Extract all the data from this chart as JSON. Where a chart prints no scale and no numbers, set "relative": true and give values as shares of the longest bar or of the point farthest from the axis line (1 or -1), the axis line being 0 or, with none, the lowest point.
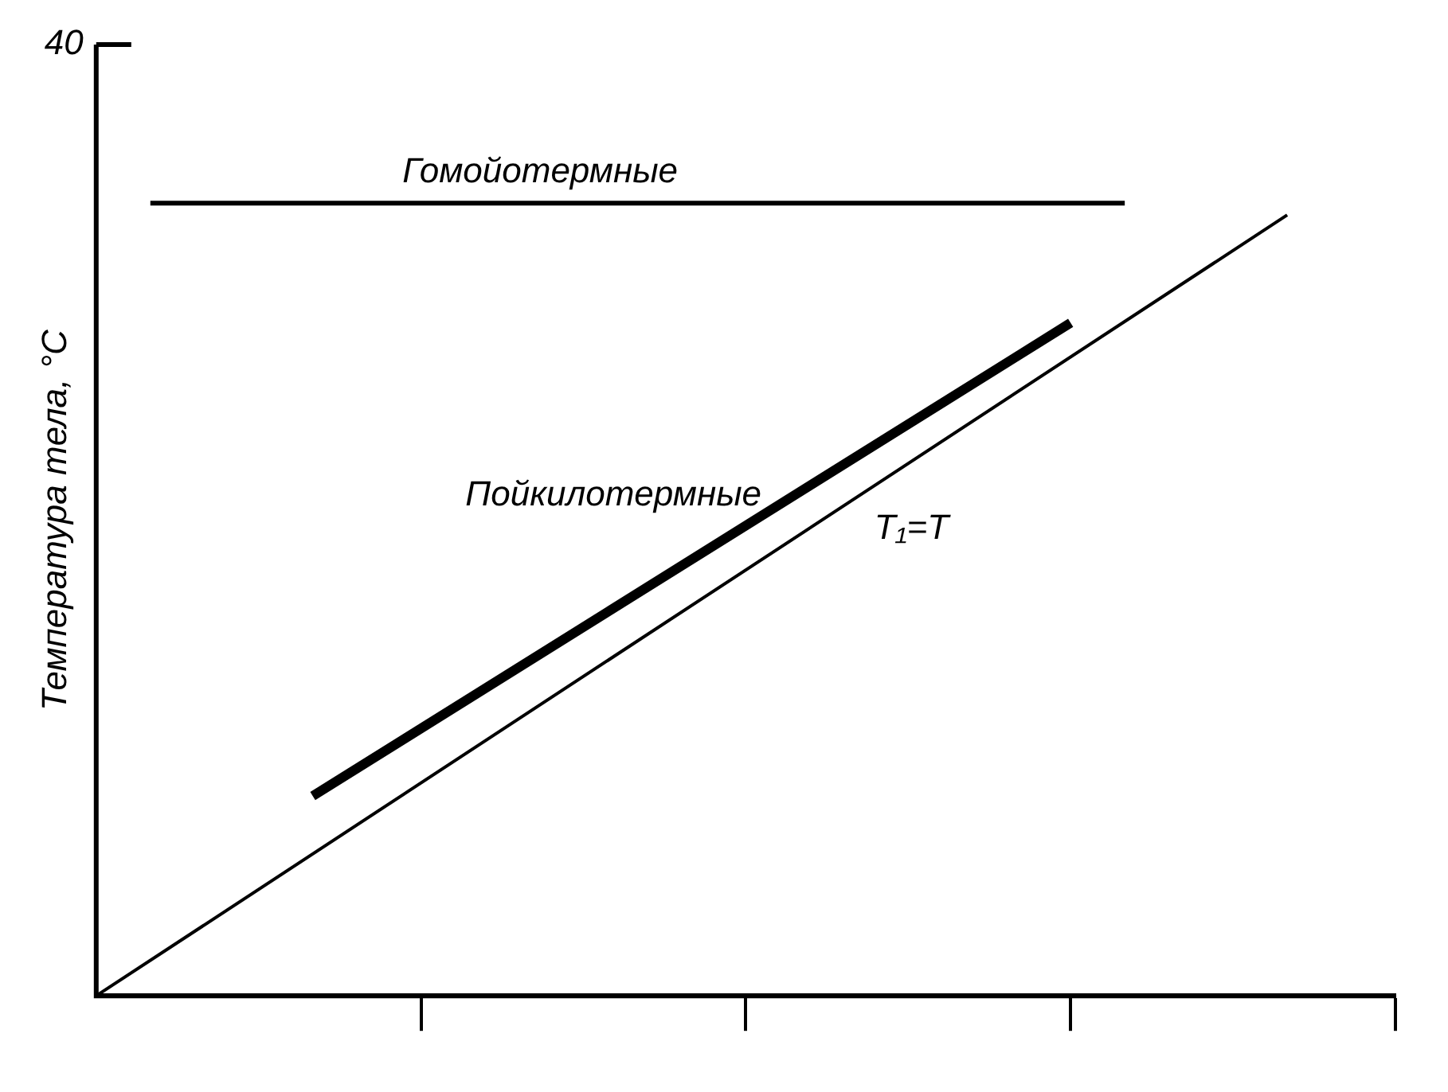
{
  "chart_data": {
    "type": "line",
    "relative": true,
    "ylabel": "Температура тела, °C",
    "annotations": [
      "40"
    ],
    "categories": [
      null,
      null,
      null,
      null,
      null,
      null,
      null,
      null,
      null,
      null,
      null,
      null,
      null,
      null,
      null,
      null,
      null,
      null,
      null,
      null,
      null,
      null,
      null,
      null,
      null
    ],
    "marker": "none",
    "line_style": "solid",
    "legend": false,
    "grid": false,
    "series": [
      {
        "name": "Гомойотермные",
        "color": "#000000",
        "values": [
          null,
          1,
          null,
          null,
          null,
          null,
          null,
          null,
          null,
          null,
          null,
          null,
          null,
          null,
          null,
          null,
          null,
          null,
          null,
          1,
          null,
          null,
          null,
          null,
          null
        ]
      },
      {
        "name": "Пойкилотермные",
        "color": "#000000",
        "values": [
          null,
          null,
          null,
          null,
          0.252,
          null,
          null,
          null,
          null,
          null,
          null,
          null,
          null,
          null,
          null,
          null,
          null,
          null,
          0.849,
          null,
          null,
          null,
          null,
          null,
          null
        ]
      },
      {
        "name": "T₁=T",
        "color": "#000000",
        "values": [
          0,
          null,
          null,
          null,
          null,
          null,
          null,
          null,
          null,
          null,
          null,
          null,
          null,
          null,
          null,
          null,
          null,
          null,
          null,
          null,
          null,
          null,
          0.985,
          null,
          null
        ]
      }
    ]
  }
}
